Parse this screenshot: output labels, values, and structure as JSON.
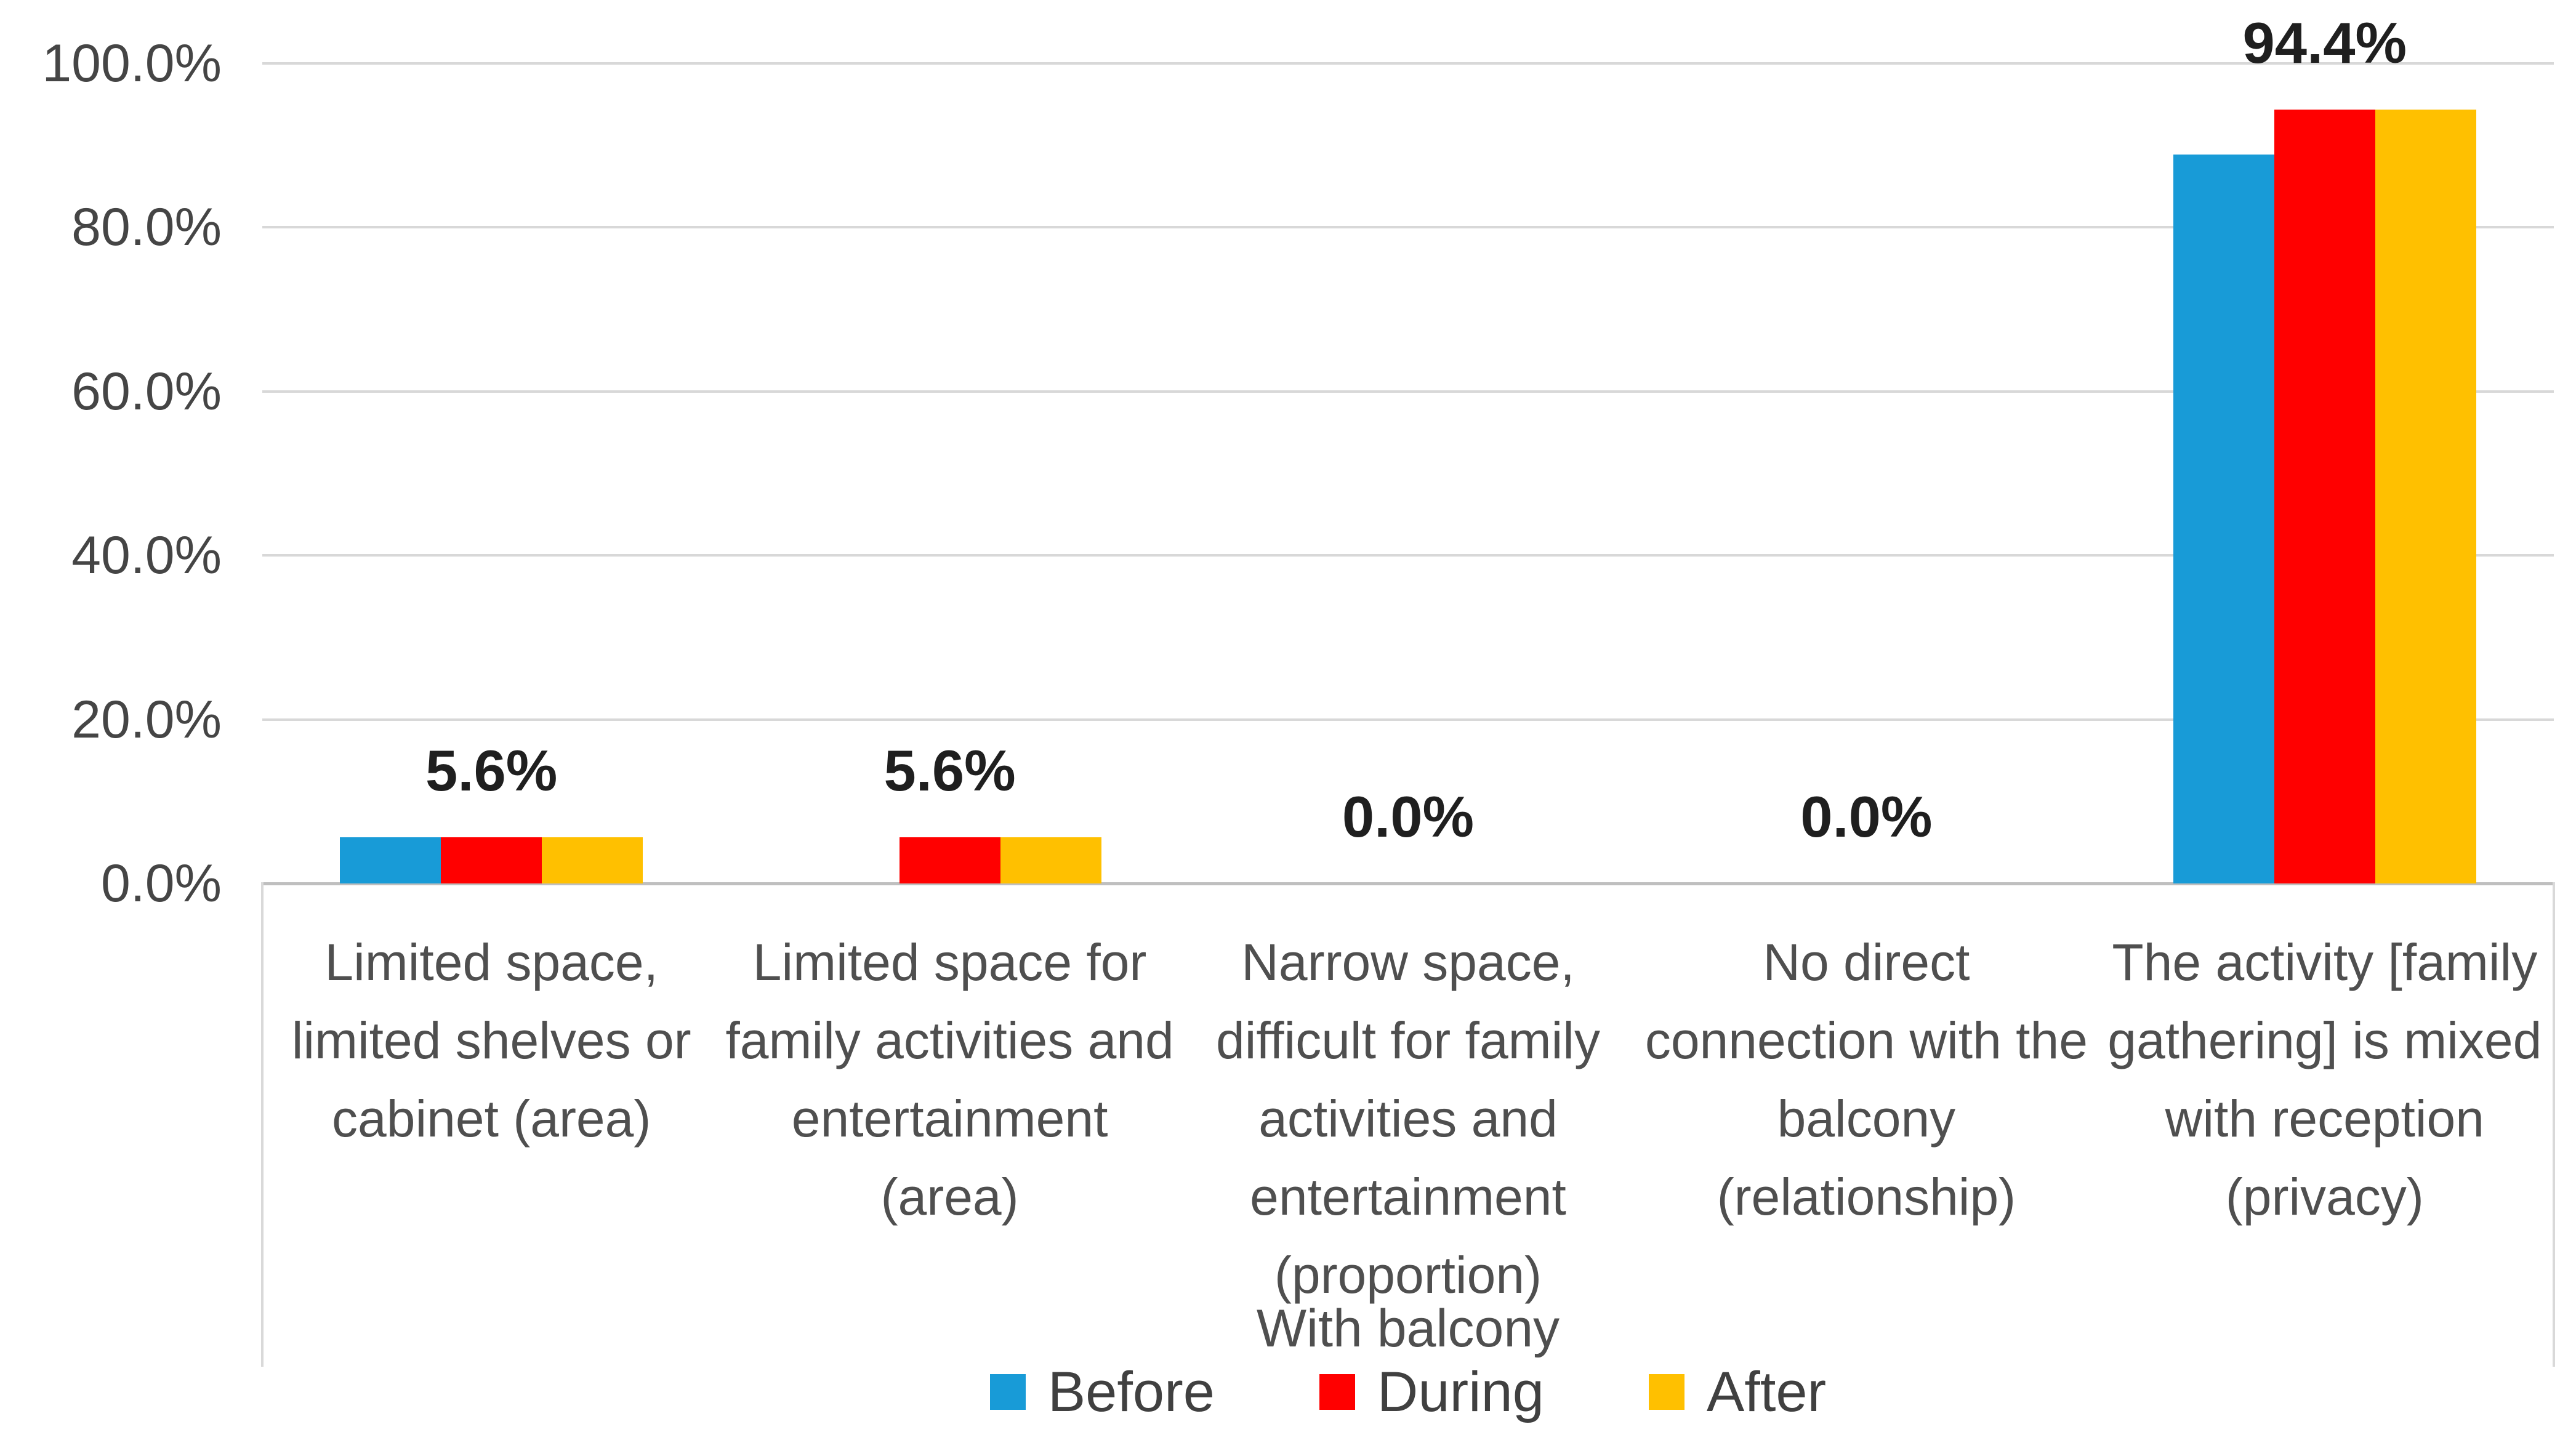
{
  "chart_data": {
    "type": "bar",
    "title": "",
    "categories": [
      "Limited space,\nlimited shelves or\ncabinet (area)",
      "Limited space for\nfamily activities and\nentertainment\n(area)",
      "Narrow space,\ndifficult for family\nactivities and\nentertainment\n(proportion)",
      "No direct\nconnection with the\nbalcony\n(relationship)",
      "The activity [family\ngathering] is mixed\nwith reception\n(privacy)"
    ],
    "series": [
      {
        "name": "Before",
        "color": "#189BD7",
        "values": [
          5.6,
          0.0,
          0.0,
          0.0,
          88.9
        ]
      },
      {
        "name": "During",
        "color": "#FF0000",
        "values": [
          5.6,
          5.6,
          0.0,
          0.0,
          94.4
        ]
      },
      {
        "name": "After",
        "color": "#FFC000",
        "values": [
          5.6,
          5.6,
          0.0,
          0.0,
          94.4
        ]
      }
    ],
    "data_labels": [
      "5.6%",
      "5.6%",
      "0.0%",
      "0.0%",
      "94.4%"
    ],
    "y_axis": {
      "min": 0,
      "max": 100,
      "tick_step": 20,
      "ticks": [
        "0.0%",
        "20.0%",
        "40.0%",
        "60.0%",
        "80.0%",
        "100.0%"
      ]
    },
    "x_axis_group_label": "With balcony",
    "legend": [
      "Before",
      "During",
      "After"
    ],
    "legend_position": "bottom",
    "grid": true,
    "colors": {
      "gridline": "#D8D8D8",
      "axis_line": "#BFBFBF",
      "label_box_border": "#D9D9D9",
      "tick_text": "#454545",
      "category_text": "#4F4F4F",
      "data_label_text": "#1F1F1F",
      "legend_text": "#404040"
    }
  }
}
